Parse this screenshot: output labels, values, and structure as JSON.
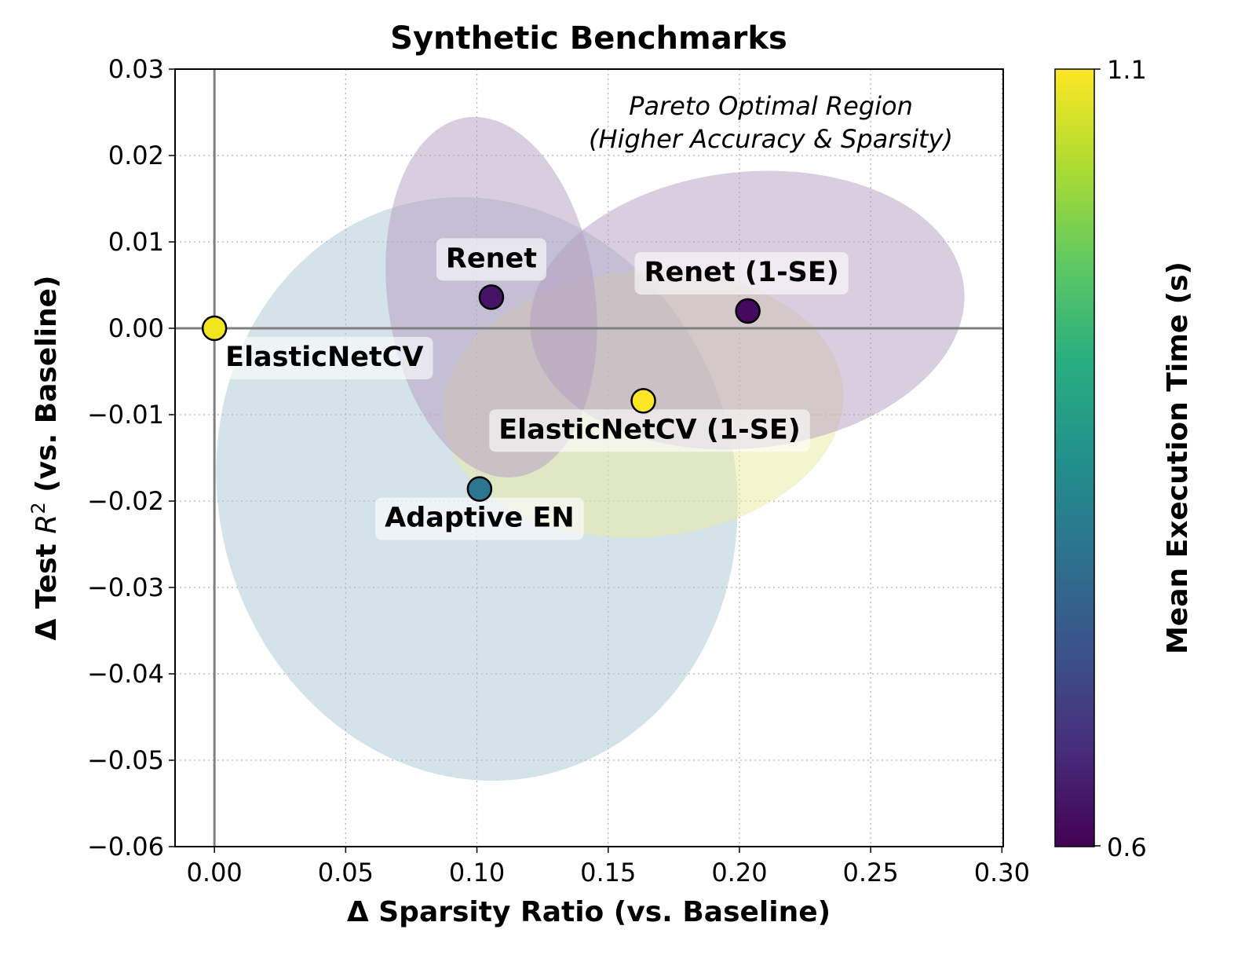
{
  "chart_data": {
    "type": "scatter",
    "title": "Synthetic Benchmarks",
    "xlabel": "Δ Sparsity Ratio (vs. Baseline)",
    "ylabel_prefix": "Δ Test ",
    "ylabel_var": "R",
    "ylabel_sup": "2",
    "ylabel_suffix": " (vs. Baseline)",
    "xlim": [
      -0.015,
      0.3005
    ],
    "ylim": [
      -0.06,
      0.03
    ],
    "xticks": [
      0.0,
      0.05,
      0.1,
      0.15,
      0.2,
      0.25,
      0.3
    ],
    "xtick_labels": [
      "0.00",
      "0.05",
      "0.10",
      "0.15",
      "0.20",
      "0.25",
      "0.30"
    ],
    "yticks": [
      0.03,
      0.02,
      0.01,
      0.0,
      -0.01,
      -0.02,
      -0.03,
      -0.04,
      -0.05,
      -0.06
    ],
    "ytick_labels": [
      "0.03",
      "0.02",
      "0.01",
      "0.00",
      "−0.01",
      "−0.02",
      "−0.03",
      "−0.04",
      "−0.05",
      "−0.06"
    ],
    "grid": true,
    "reference_lines": {
      "x": 0.0,
      "y": 0.0
    },
    "annotation": [
      "Pareto Optimal Region",
      "(Higher Accuracy & Sparsity)"
    ],
    "annotation_position": "top-right",
    "colorbar": {
      "label": "Mean Execution Time (s)",
      "min": 0.6,
      "max": 1.1,
      "tick_labels": [
        "1.1",
        "0.6"
      ],
      "colormap": "viridis"
    },
    "points": [
      {
        "name": "ElasticNetCV",
        "x": 0.0,
        "y": 0.0,
        "time": 1.1,
        "color": "#f1e51d",
        "label_pos": "below-right"
      },
      {
        "name": "Renet",
        "x": 0.1055,
        "y": 0.0036,
        "time": 0.6,
        "color": "#461466",
        "label_pos": "above"
      },
      {
        "name": "Renet (1-SE)",
        "x": 0.2032,
        "y": 0.002,
        "time": 0.6,
        "color": "#440a5e",
        "label_pos": "above"
      },
      {
        "name": "ElasticNetCV (1-SE)",
        "x": 0.1634,
        "y": -0.0084,
        "time": 1.1,
        "color": "#fde725",
        "label_pos": "below"
      },
      {
        "name": "Adaptive EN",
        "x": 0.101,
        "y": -0.0186,
        "time": 0.82,
        "color": "#2c7691",
        "label_pos": "below"
      }
    ],
    "confidence_ellipses": [
      {
        "name": "Adaptive EN",
        "cx": 0.1,
        "cy": -0.0186,
        "half_width": 0.0985,
        "half_height": 0.034,
        "angle_deg": -14,
        "color": "#a9c6d3"
      },
      {
        "name": "ElasticNetCV (1-SE)",
        "cx": 0.1632,
        "cy": -0.0088,
        "half_width": 0.0765,
        "half_height": 0.0154,
        "angle_deg": -4,
        "color": "#e9eca0"
      },
      {
        "name": "Renet",
        "cx": 0.1055,
        "cy": 0.0036,
        "half_width": 0.0395,
        "half_height": 0.021,
        "angle_deg": -8,
        "color": "#b39bc2"
      },
      {
        "name": "Renet (1-SE)",
        "cx": 0.203,
        "cy": 0.0021,
        "half_width": 0.083,
        "half_height": 0.016,
        "angle_deg": -6,
        "color": "#b39bc2"
      }
    ]
  }
}
